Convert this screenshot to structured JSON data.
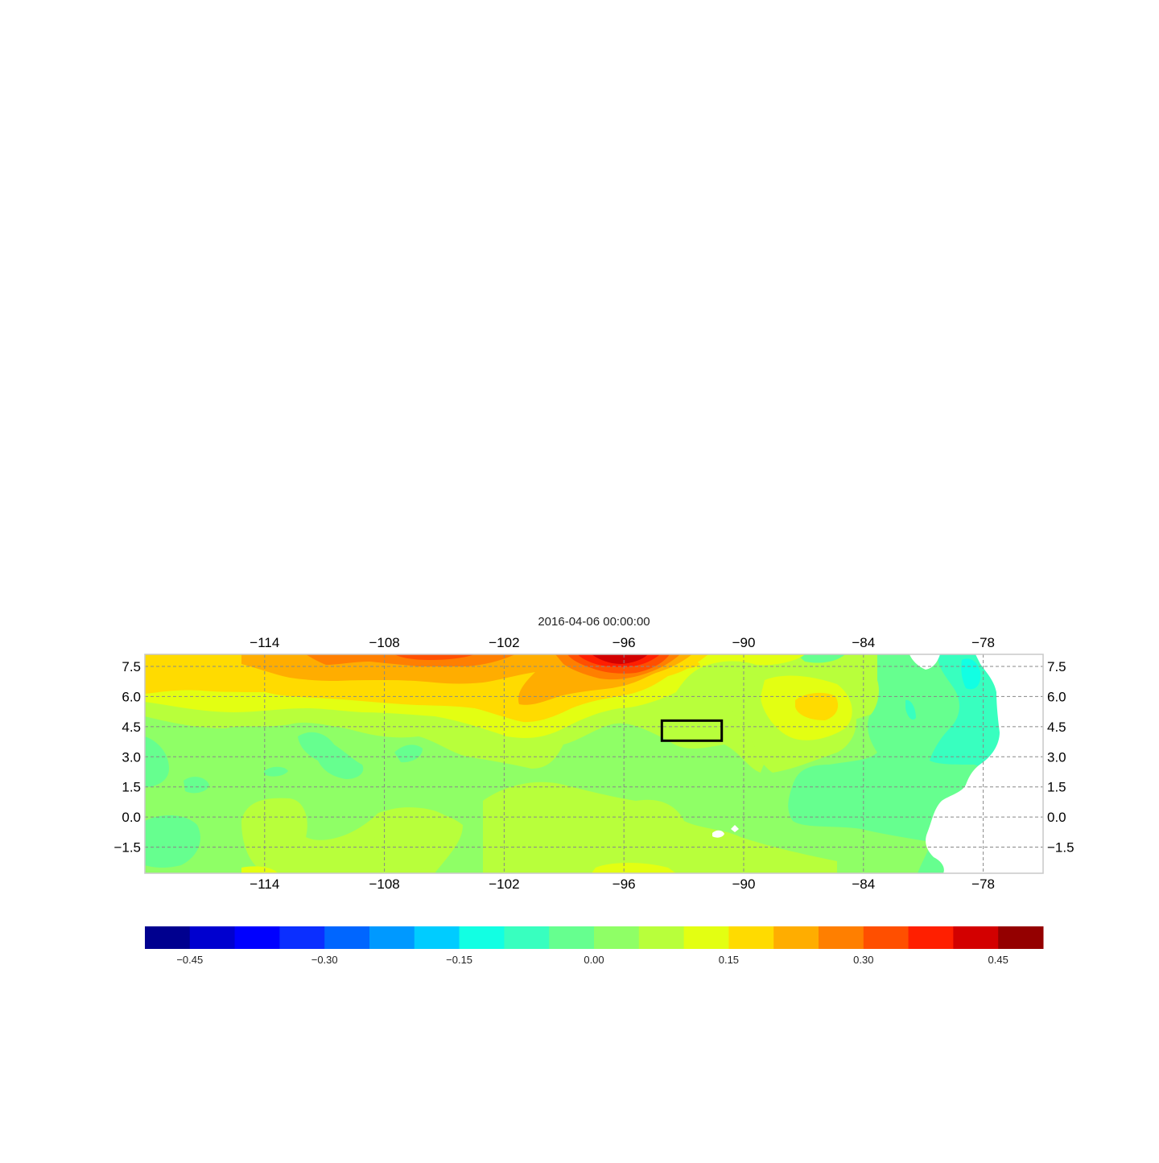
{
  "title": "2016-04-06 00:00:00",
  "map": {
    "lon_ticks": [
      -114,
      -108,
      -102,
      -96,
      -90,
      -84,
      -78
    ],
    "lon_tick_labels": [
      "−114",
      "−108",
      "−102",
      "−96",
      "−90",
      "−84",
      "−78"
    ],
    "lat_ticks": [
      7.5,
      6.0,
      4.5,
      3.0,
      1.5,
      0.0,
      -1.5
    ],
    "lat_tick_labels": [
      "7.5",
      "6.0",
      "4.5",
      "3.0",
      "1.5",
      "0.0",
      "−1.5"
    ],
    "lon_range": [
      -120,
      -75
    ],
    "lat_range": [
      -2.8,
      8.1
    ],
    "grid": true,
    "box": {
      "lon": [
        -94.1,
        -91.1
      ],
      "lat": [
        3.8,
        4.8
      ]
    }
  },
  "colorbar": {
    "min": -0.5,
    "max": 0.5,
    "colors": [
      "#00008f",
      "#0000cf",
      "#0000ff",
      "#0b2fff",
      "#0066ff",
      "#0099ff",
      "#00ccff",
      "#12ffe3",
      "#38ffbf",
      "#66ff8f",
      "#8fff66",
      "#b8ff3b",
      "#e3ff12",
      "#ffdb00",
      "#ffad00",
      "#ff7f00",
      "#ff4f00",
      "#ff1f00",
      "#d30000",
      "#940000"
    ],
    "tick_values": [
      -0.45,
      -0.3,
      -0.15,
      0.0,
      0.15,
      0.3,
      0.45
    ],
    "tick_labels": [
      "−0.45",
      "−0.30",
      "−0.15",
      "0.00",
      "0.15",
      "0.30",
      "0.45"
    ]
  }
}
